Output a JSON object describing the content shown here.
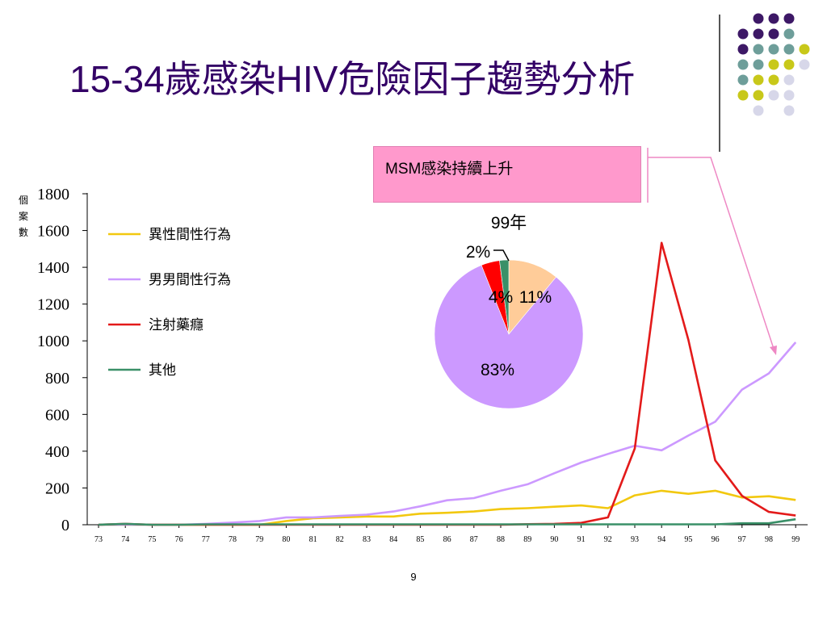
{
  "slide": {
    "title": "15-34歲感染HIV危險因子趨勢分析",
    "callout": "MSM感染持續上升",
    "page_number": "9"
  },
  "decor": {
    "dot_colors": [
      "#3d1866",
      "#6e9e9a",
      "#c8c81a",
      "#d7d7e9"
    ]
  },
  "chart_data": [
    {
      "type": "line",
      "ylabel": "個案數",
      "ylim": [
        0,
        1800
      ],
      "yticks": [
        "0",
        "200",
        "400",
        "600",
        "800",
        "1000",
        "1200",
        "1400",
        "1600",
        "1800"
      ],
      "x": [
        "73",
        "74",
        "75",
        "76",
        "77",
        "78",
        "79",
        "80",
        "81",
        "82",
        "83",
        "84",
        "85",
        "86",
        "87",
        "88",
        "89",
        "90",
        "91",
        "92",
        "93",
        "94",
        "95",
        "96",
        "97",
        "98",
        "99"
      ],
      "grid": false,
      "legend_position": "top-left",
      "series": [
        {
          "name": "異性間性行為",
          "color": "#f2c80f",
          "values": [
            0,
            0,
            0,
            0,
            0,
            0,
            0,
            20,
            35,
            40,
            45,
            45,
            60,
            65,
            72,
            85,
            90,
            98,
            105,
            90,
            160,
            185,
            168,
            185,
            148,
            155,
            135
          ]
        },
        {
          "name": "男男間性行為",
          "color": "#cc99ff",
          "values": [
            0,
            0,
            0,
            0,
            5,
            12,
            20,
            40,
            40,
            48,
            55,
            72,
            100,
            133,
            145,
            185,
            220,
            280,
            338,
            385,
            430,
            405,
            485,
            560,
            735,
            823,
            992
          ]
        },
        {
          "name": "注射藥癮",
          "color": "#e31a1a",
          "values": [
            0,
            5,
            0,
            0,
            0,
            0,
            0,
            0,
            0,
            0,
            0,
            0,
            0,
            0,
            0,
            0,
            3,
            5,
            10,
            40,
            415,
            1533,
            1005,
            350,
            157,
            70,
            50
          ]
        },
        {
          "name": "其他",
          "color": "#3a9068",
          "values": [
            0,
            5,
            0,
            0,
            2,
            2,
            2,
            2,
            2,
            2,
            2,
            2,
            2,
            2,
            2,
            2,
            2,
            2,
            2,
            2,
            2,
            2,
            2,
            2,
            8,
            8,
            30
          ]
        }
      ]
    },
    {
      "type": "pie",
      "title": "99年",
      "slices": [
        {
          "name": "異性間性行為",
          "value": 11,
          "label": "11%",
          "color": "#ffcc99"
        },
        {
          "name": "男男間性行為",
          "value": 83,
          "label": "83%",
          "color": "#cc99ff"
        },
        {
          "name": "注射藥癮",
          "value": 4,
          "label": "4%",
          "color": "#ff0000"
        },
        {
          "name": "其他",
          "value": 2,
          "label": "2%",
          "color": "#3a9068"
        }
      ]
    }
  ]
}
